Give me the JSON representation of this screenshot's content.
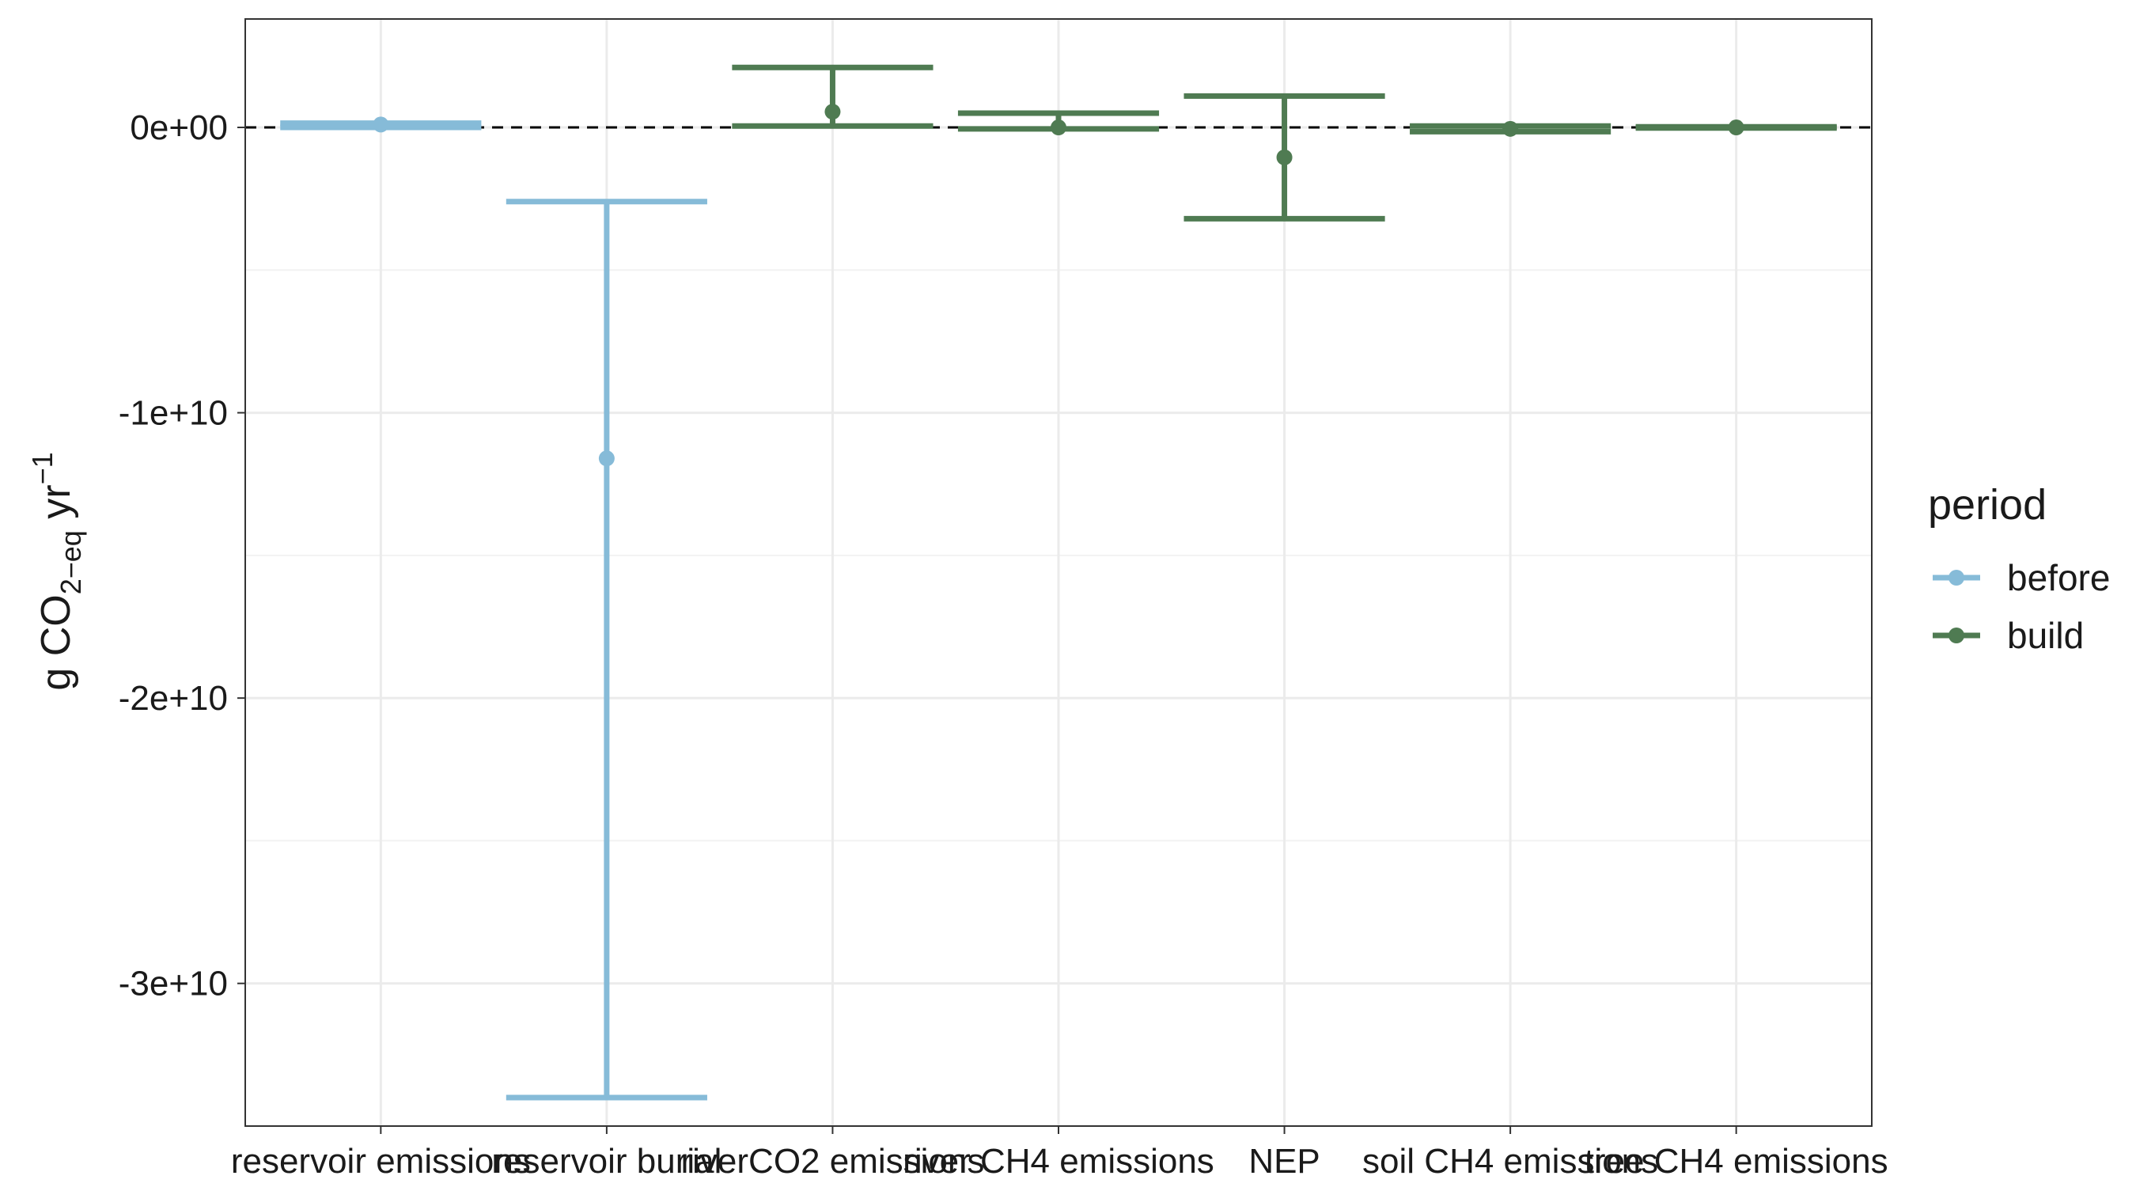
{
  "chart_data": {
    "type": "errorbar",
    "title": "",
    "xlabel": "",
    "ylabel": {
      "prefix": "g CO",
      "sub1": "2−eq",
      "mid": " yr",
      "sup": "−1"
    },
    "ylim": [
      -35000000000,
      3800000000
    ],
    "yticks": [
      0,
      -10000000000,
      -20000000000,
      -30000000000
    ],
    "ytick_labels": [
      "0e+00",
      "-1e+10",
      "-2e+10",
      "-3e+10"
    ],
    "reference_line": 0,
    "categories": [
      "reservoir emissions",
      "reservoir burial",
      "riverCO2 emissions",
      "river CH4 emissions",
      "NEP",
      "soil CH4 emissions",
      "tree CH4 emissions"
    ],
    "legend": {
      "title": "period",
      "position": "right",
      "items": [
        {
          "label": "before",
          "color": "#86BBD8"
        },
        {
          "label": "build",
          "color": "#4F7B52"
        }
      ]
    },
    "series": [
      {
        "name": "before",
        "color": "#86BBD8",
        "points": [
          {
            "category": "reservoir emissions",
            "y": 100000000,
            "ymin": 0,
            "ymax": 150000000
          },
          {
            "category": "reservoir burial",
            "y": -11600000000,
            "ymin": -34000000000,
            "ymax": -2600000000
          }
        ]
      },
      {
        "name": "build",
        "color": "#4F7B52",
        "points": [
          {
            "category": "riverCO2 emissions",
            "y": 550000000,
            "ymin": 50000000,
            "ymax": 2100000000
          },
          {
            "category": "river CH4 emissions",
            "y": 0,
            "ymin": -50000000,
            "ymax": 500000000
          },
          {
            "category": "NEP",
            "y": -1050000000,
            "ymin": -3200000000,
            "ymax": 1100000000
          },
          {
            "category": "soil CH4 emissions",
            "y": -50000000,
            "ymin": -150000000,
            "ymax": 50000000
          },
          {
            "category": "tree CH4 emissions",
            "y": 0,
            "ymin": -20000000,
            "ymax": 20000000
          }
        ]
      }
    ]
  }
}
